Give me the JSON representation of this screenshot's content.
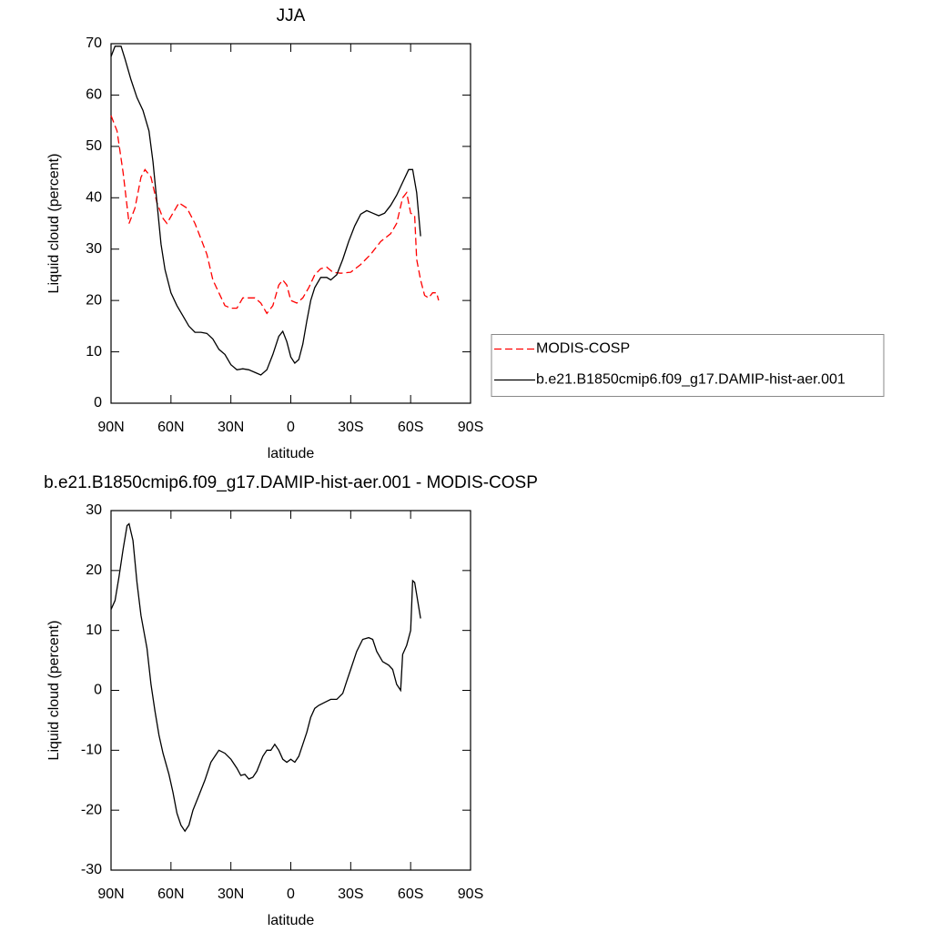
{
  "chart_data": [
    {
      "type": "line",
      "title": "JJA",
      "xlabel": "latitude",
      "ylabel": "Liquid cloud (percent)",
      "xlim": [
        90,
        -90
      ],
      "ylim": [
        0,
        70
      ],
      "xticks": [
        {
          "value": 90,
          "label": "90N"
        },
        {
          "value": 60,
          "label": "60N"
        },
        {
          "value": 30,
          "label": "30N"
        },
        0,
        {
          "value": -30,
          "label": "30S"
        },
        {
          "value": -60,
          "label": "60S"
        },
        {
          "value": -90,
          "label": "90S"
        }
      ],
      "yticks": [
        0,
        10,
        20,
        30,
        40,
        50,
        60,
        70
      ],
      "legend": "right",
      "series": [
        {
          "name": "MODIS-COSP",
          "color": "#ff0000",
          "line_style": "dashed",
          "x": [
            90,
            87,
            84,
            81,
            78,
            75,
            73,
            70,
            67,
            64,
            62,
            59,
            56,
            52,
            48,
            45,
            42,
            39,
            36,
            33,
            30,
            27,
            24,
            21,
            18,
            15,
            12,
            9,
            6,
            4,
            2,
            0,
            -3,
            -6,
            -9,
            -12,
            -15,
            -18,
            -21,
            -25,
            -30,
            -35,
            -40,
            -45,
            -50,
            -53,
            -56,
            -58,
            -60,
            -62,
            -63,
            -65,
            -67,
            -69,
            -71,
            -73,
            -74
          ],
          "values": [
            56,
            53,
            45,
            35,
            38,
            44,
            45.5,
            44,
            39,
            36,
            35,
            37,
            39,
            38,
            35,
            32,
            29,
            24,
            21.5,
            19,
            18.5,
            18.5,
            20.5,
            20.5,
            20.5,
            19.5,
            17.5,
            19,
            23,
            24,
            23,
            20,
            19.5,
            20.5,
            22.5,
            25,
            26.2,
            26.5,
            25.5,
            25.3,
            25.5,
            27,
            29,
            31.5,
            33,
            35,
            40,
            41,
            37,
            36.5,
            28,
            24,
            21,
            20.5,
            21.5,
            21.5,
            20
          ]
        },
        {
          "name": "b.e21.B1850cmip6.f09_g17.DAMIP-hist-aer.001",
          "color": "#000000",
          "line_style": "solid",
          "x": [
            90,
            88,
            85,
            83,
            80,
            77,
            74,
            71,
            69,
            67,
            65,
            63,
            60,
            57,
            54,
            51,
            48,
            45,
            42,
            39,
            36,
            33,
            30,
            27,
            24,
            21,
            18,
            15,
            12,
            9,
            6,
            4,
            2,
            0,
            -2,
            -4,
            -6,
            -8,
            -10,
            -12,
            -15,
            -18,
            -20,
            -23,
            -26,
            -29,
            -32,
            -35,
            -38,
            -41,
            -44,
            -47,
            -50,
            -53,
            -56,
            -59,
            -61,
            -63,
            -65
          ],
          "values": [
            67.5,
            69.5,
            69.5,
            67,
            63,
            59.5,
            57,
            53,
            47,
            39,
            31,
            26,
            21.5,
            19,
            17,
            15,
            13.8,
            13.8,
            13.6,
            12.5,
            10.5,
            9.5,
            7.5,
            6.5,
            6.7,
            6.5,
            6,
            5.5,
            6.5,
            9.5,
            13,
            14,
            12,
            9,
            7.8,
            8.5,
            11.5,
            16,
            20,
            22.5,
            24.5,
            24.5,
            24,
            25,
            28,
            31.5,
            34.5,
            36.8,
            37.5,
            37,
            36.5,
            37,
            38.5,
            40.5,
            43,
            45.5,
            45.5,
            41,
            32.5
          ]
        }
      ]
    },
    {
      "type": "line",
      "title": "b.e21.B1850cmip6.f09_g17.DAMIP-hist-aer.001 - MODIS-COSP",
      "xlabel": "latitude",
      "ylabel": "Liquid cloud (percent)",
      "xlim": [
        90,
        -90
      ],
      "ylim": [
        -30,
        30
      ],
      "xticks": [
        {
          "value": 90,
          "label": "90N"
        },
        {
          "value": 60,
          "label": "60N"
        },
        {
          "value": 30,
          "label": "30N"
        },
        0,
        {
          "value": -30,
          "label": "30S"
        },
        {
          "value": -60,
          "label": "60S"
        },
        {
          "value": -90,
          "label": "90S"
        }
      ],
      "yticks": [
        -30,
        -20,
        -10,
        0,
        10,
        20,
        30
      ],
      "series": [
        {
          "color": "#000000",
          "line_style": "solid",
          "x": [
            90,
            88,
            86,
            84,
            82,
            81,
            79,
            77,
            75,
            72,
            70,
            68,
            66,
            64,
            61,
            59,
            57,
            55,
            53,
            51,
            49,
            46,
            43,
            40,
            38,
            36,
            33,
            30,
            27,
            25,
            23,
            21,
            19,
            17,
            14,
            12,
            10,
            8,
            6,
            4,
            2,
            0,
            -2,
            -4,
            -6,
            -8,
            -10,
            -12,
            -14,
            -17,
            -20,
            -23,
            -26,
            -28,
            -30,
            -33,
            -36,
            -39,
            -41,
            -43,
            -46,
            -49,
            -51,
            -53,
            -55,
            -56,
            -58,
            -60,
            -61,
            -62,
            -63,
            -65
          ],
          "values": [
            13.5,
            15,
            19,
            23.5,
            27.5,
            27.8,
            25,
            18,
            12.5,
            7,
            1,
            -3.5,
            -7.5,
            -10.5,
            -14,
            -17,
            -20.5,
            -22.5,
            -23.5,
            -22.5,
            -20,
            -17.5,
            -15,
            -12,
            -11,
            -10,
            -10.5,
            -11.5,
            -13,
            -14.2,
            -14,
            -14.8,
            -14.5,
            -13.5,
            -11,
            -10,
            -10,
            -9,
            -10,
            -11.5,
            -12,
            -11.5,
            -12,
            -11,
            -9,
            -7,
            -4.5,
            -3,
            -2.5,
            -2,
            -1.5,
            -1.5,
            -0.5,
            1.5,
            3.5,
            6.5,
            8.5,
            8.8,
            8.5,
            6.5,
            4.8,
            4.2,
            3.5,
            1,
            0,
            6,
            7.5,
            10,
            18.3,
            18,
            16,
            12
          ]
        }
      ]
    }
  ]
}
